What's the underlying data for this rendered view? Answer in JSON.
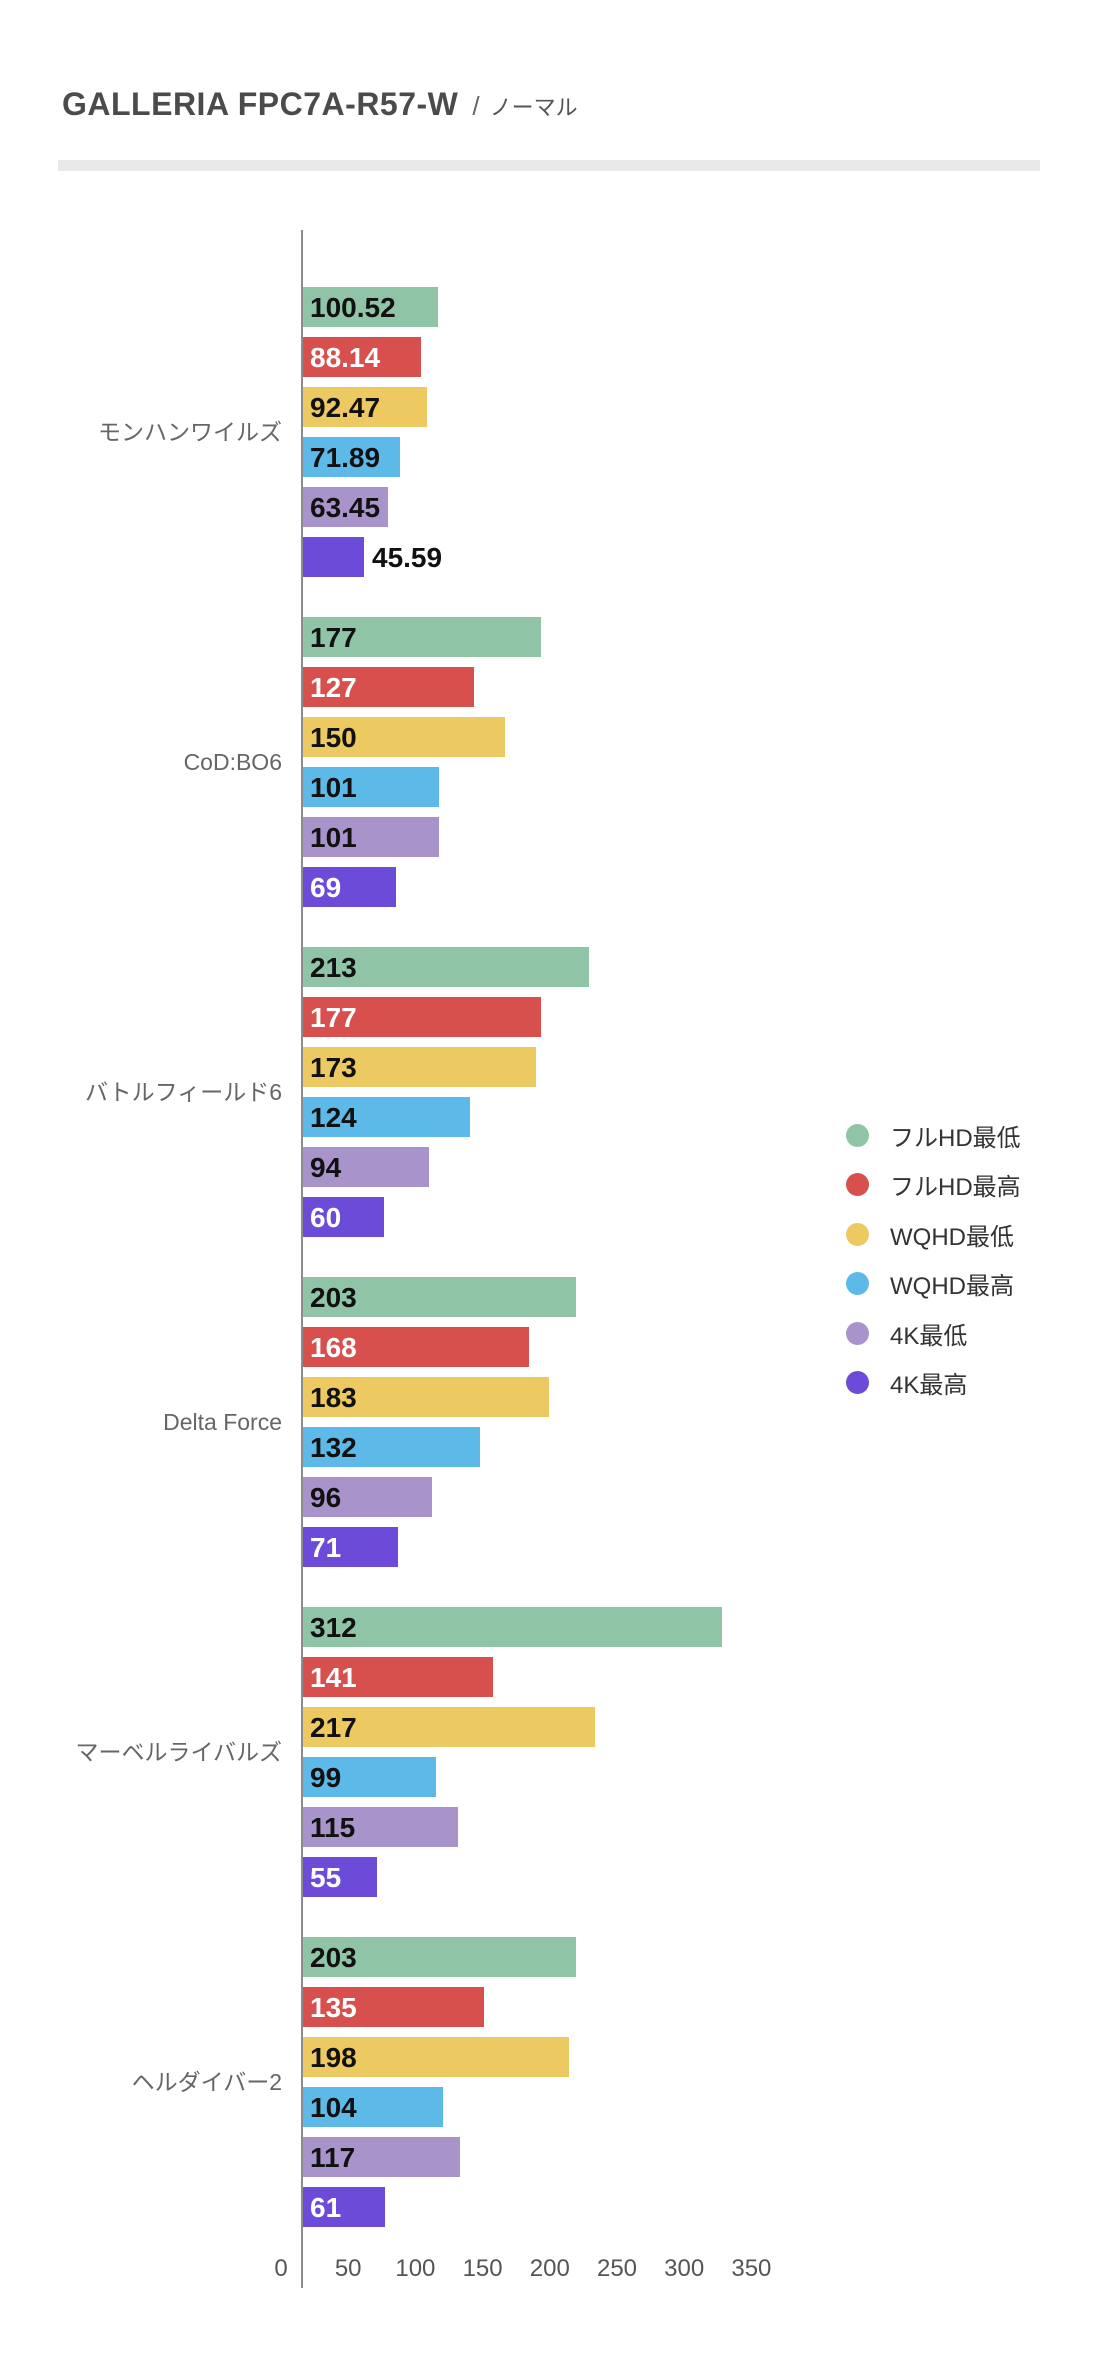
{
  "header": {
    "title": "GALLERIA FPC7A-R57-W",
    "separator": "/",
    "subtitle": "ノーマル"
  },
  "chart_data": {
    "type": "bar",
    "orientation": "horizontal",
    "title": "GALLERIA FPC7A-R57-W / ノーマル",
    "categories": [
      "モンハンワイルズ",
      "CoD:BO6",
      "バトルフィールド6",
      "Delta Force",
      "マーベルライバルズ",
      "ヘルダイバー2"
    ],
    "series": [
      {
        "name": "フルHD最低",
        "color": "#8fc4a6",
        "label_text_color": "#111111",
        "values": [
          100.52,
          177,
          213,
          203,
          312,
          203
        ]
      },
      {
        "name": "フルHD最高",
        "color": "#d7504e",
        "label_text_color": "#ffffff",
        "values": [
          88.14,
          127,
          177,
          168,
          141,
          135
        ]
      },
      {
        "name": "WQHD最低",
        "color": "#edc961",
        "label_text_color": "#111111",
        "values": [
          92.47,
          150,
          173,
          183,
          217,
          198
        ]
      },
      {
        "name": "WQHD最高",
        "color": "#5db9e7",
        "label_text_color": "#111111",
        "values": [
          71.89,
          101,
          124,
          132,
          99,
          104
        ]
      },
      {
        "name": "4K最低",
        "color": "#a993cb",
        "label_text_color": "#111111",
        "values": [
          63.45,
          101,
          94,
          96,
          115,
          117
        ]
      },
      {
        "name": "4K最高",
        "color": "#6c4bd9",
        "label_text_color": "#ffffff",
        "values": [
          45.59,
          69,
          60,
          71,
          55,
          61
        ]
      }
    ],
    "x_ticks": [
      0,
      50,
      100,
      150,
      200,
      250,
      300,
      350
    ],
    "xlim": [
      0,
      372
    ],
    "grid": false,
    "legend_position": "right",
    "value_labels_shown": true,
    "outside_label_color": "#111111"
  },
  "colors": {
    "axis": "#8c8c8c",
    "divider": "#e9e9e9",
    "title_text": "#4b4b4b",
    "category_text": "#666666",
    "tick_text": "#555555",
    "legend_text": "#333333"
  }
}
